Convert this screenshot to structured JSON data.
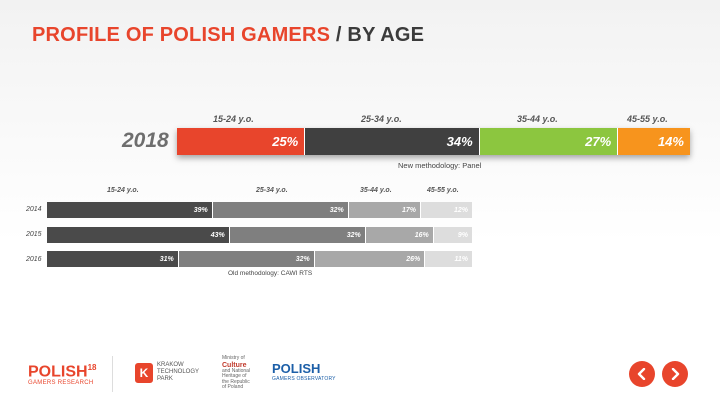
{
  "title": {
    "red": "PROFILE OF POLISH GAMERS",
    "dark": " / BY AGE"
  },
  "colors": {
    "accent": "#e8452c",
    "main": [
      "#e8452c",
      "#404040",
      "#8cc63f",
      "#f7941d"
    ],
    "old": [
      "#4a4a4a",
      "#7f7f7f",
      "#a8a8a8",
      "#dddddd"
    ]
  },
  "chart_data": [
    {
      "type": "bar",
      "orientation": "horizontal-stacked-100",
      "categories": [
        "2018"
      ],
      "series": [
        {
          "name": "15-24 y.o.",
          "values": [
            25
          ],
          "label": "25%"
        },
        {
          "name": "25-34 y.o.",
          "values": [
            34
          ],
          "label": "34%"
        },
        {
          "name": "35-44 y.o.",
          "values": [
            27
          ],
          "label": "27%"
        },
        {
          "name": "45-55 y.o.",
          "values": [
            14
          ],
          "label": "14%"
        }
      ],
      "note": "New methodology: Panel"
    },
    {
      "type": "bar",
      "orientation": "horizontal-stacked-100",
      "categories": [
        "2014",
        "2015",
        "2016"
      ],
      "series": [
        {
          "name": "15-24 y.o.",
          "values": [
            39,
            43,
            31
          ],
          "labels": [
            "39%",
            "43%",
            "31%"
          ]
        },
        {
          "name": "25-34 y.o.",
          "values": [
            32,
            32,
            32
          ],
          "labels": [
            "32%",
            "32%",
            "32%"
          ]
        },
        {
          "name": "35-44 y.o.",
          "values": [
            17,
            16,
            26
          ],
          "labels": [
            "17%",
            "16%",
            "26%"
          ]
        },
        {
          "name": "45-55 y.o.",
          "values": [
            12,
            9,
            11
          ],
          "labels": [
            "12%",
            "9%",
            "11%"
          ]
        }
      ],
      "note": "Old methodology: CAWI RTS"
    }
  ],
  "footer": {
    "logo1_main": "POLISH",
    "logo1_num": "18",
    "logo1_sub": "GAMERS RESEARCH",
    "logo2_line1": "KRAKOW",
    "logo2_line2": "TECHNOLOGY",
    "logo2_line3": "PARK",
    "logo3_line1": "Ministry of",
    "logo3_line2": "Culture",
    "logo3_line3": "and National",
    "logo3_line4": "Heritage of",
    "logo3_line5": "the Republic",
    "logo3_line6": "of Poland",
    "logo4_main": "POLISH",
    "logo4_sub": "GAMERS OBSERVATORY"
  },
  "nav": {
    "prev_icon": "chevron-left-icon",
    "next_icon": "chevron-right-icon"
  }
}
